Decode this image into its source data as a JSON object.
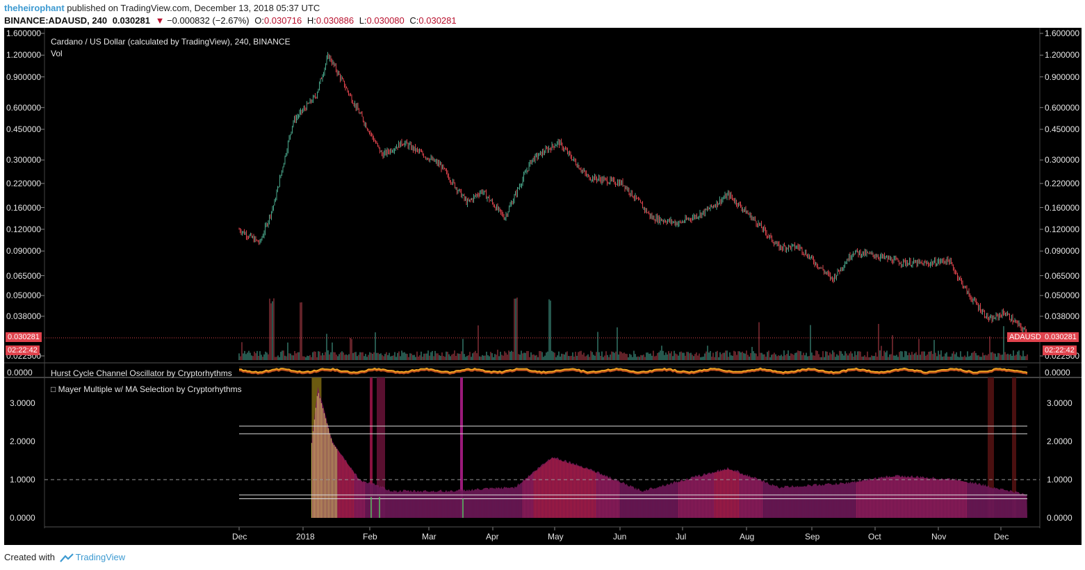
{
  "header": {
    "publisher": "theheirophant",
    "published_text": "published on TradingView.com, December 13, 2018 05:37 UTC",
    "symbol": "BINANCE:ADAUSD, 240",
    "last": "0.030281",
    "change": "−0.000832 (−2.67%)",
    "o_label": "O:",
    "o": "0.030716",
    "h_label": "H:",
    "h": "0.030886",
    "l_label": "L:",
    "l": "0.030080",
    "c_label": "C:",
    "c": "0.030281"
  },
  "price_pane": {
    "title": "Cardano / US Dollar (calculated by TradingView), 240, BINANCE",
    "volume_label": "Vol",
    "axis_labels": [
      "1.600000",
      "1.200000",
      "0.900000",
      "0.600000",
      "0.450000",
      "0.300000",
      "0.220000",
      "0.160000",
      "0.120000",
      "0.090000",
      "0.065000",
      "0.050000",
      "0.038000",
      "0.022500"
    ],
    "last_price_badge": "0.030281",
    "timer_badge": "02:22:42",
    "symbol_badge": "ADAUSD",
    "right_price_badge": "0.030281",
    "right_timer_badge": "02:22:42"
  },
  "hurst_pane": {
    "title": "Hurst Cycle Channel Oscillator by Cryptorhythms",
    "axis_label": "0.0000"
  },
  "mayer_pane": {
    "title": "□ Mayer Multiple w/ MA Selection by Cryptorhythms",
    "axis_labels": [
      "3.0000",
      "2.0000",
      "1.0000",
      "0.0000"
    ]
  },
  "time_axis": [
    "Dec",
    "2018",
    "Feb",
    "Mar",
    "Apr",
    "May",
    "Jun",
    "Jul",
    "Aug",
    "Sep",
    "Oct",
    "Nov",
    "Dec"
  ],
  "footer": {
    "created_with": "Created with",
    "brand": "TradingView"
  },
  "colors": {
    "background": "#000000",
    "up": "#4aa88c",
    "down": "#e0434d",
    "badge": "#e0434d",
    "oscillator": "#f5a623",
    "mayer_fill": "#7a1a5c",
    "mayer_top": "#a8327a"
  },
  "chart_data": {
    "type": "line",
    "description_series": [
      {
        "name": "ADAUSD",
        "x": [
          "2017-11-28",
          "2017-12-08",
          "2017-12-15",
          "2017-12-24",
          "2018-01-04",
          "2018-01-10",
          "2018-01-20",
          "2018-02-05",
          "2018-02-15",
          "2018-03-05",
          "2018-03-18",
          "2018-03-25",
          "2018-04-05",
          "2018-04-18",
          "2018-05-01",
          "2018-05-15",
          "2018-06-01",
          "2018-06-15",
          "2018-06-28",
          "2018-07-10",
          "2018-07-22",
          "2018-08-05",
          "2018-08-15",
          "2018-08-25",
          "2018-09-10",
          "2018-09-20",
          "2018-10-01",
          "2018-10-12",
          "2018-10-25",
          "2018-11-05",
          "2018-11-15",
          "2018-11-25",
          "2018-12-02",
          "2018-12-13"
        ],
        "values": [
          0.12,
          0.1,
          0.17,
          0.5,
          0.7,
          1.2,
          0.72,
          0.32,
          0.38,
          0.28,
          0.17,
          0.2,
          0.14,
          0.3,
          0.38,
          0.24,
          0.22,
          0.14,
          0.13,
          0.15,
          0.19,
          0.13,
          0.095,
          0.095,
          0.062,
          0.089,
          0.085,
          0.078,
          0.076,
          0.08,
          0.05,
          0.036,
          0.04,
          0.0303
        ]
      },
      {
        "name": "Mayer Multiple",
        "x": [
          "2018-01-02",
          "2018-01-05",
          "2018-01-12",
          "2018-01-25",
          "2018-02-10",
          "2018-03-10",
          "2018-04-10",
          "2018-04-28",
          "2018-05-15",
          "2018-06-10",
          "2018-07-22",
          "2018-08-15",
          "2018-09-15",
          "2018-10-10",
          "2018-11-10",
          "2018-12-13"
        ],
        "values": [
          2.0,
          3.4,
          2.0,
          1.0,
          0.7,
          0.7,
          0.8,
          1.6,
          1.3,
          0.7,
          1.3,
          0.8,
          0.9,
          1.1,
          1.0,
          0.6
        ]
      }
    ]
  }
}
